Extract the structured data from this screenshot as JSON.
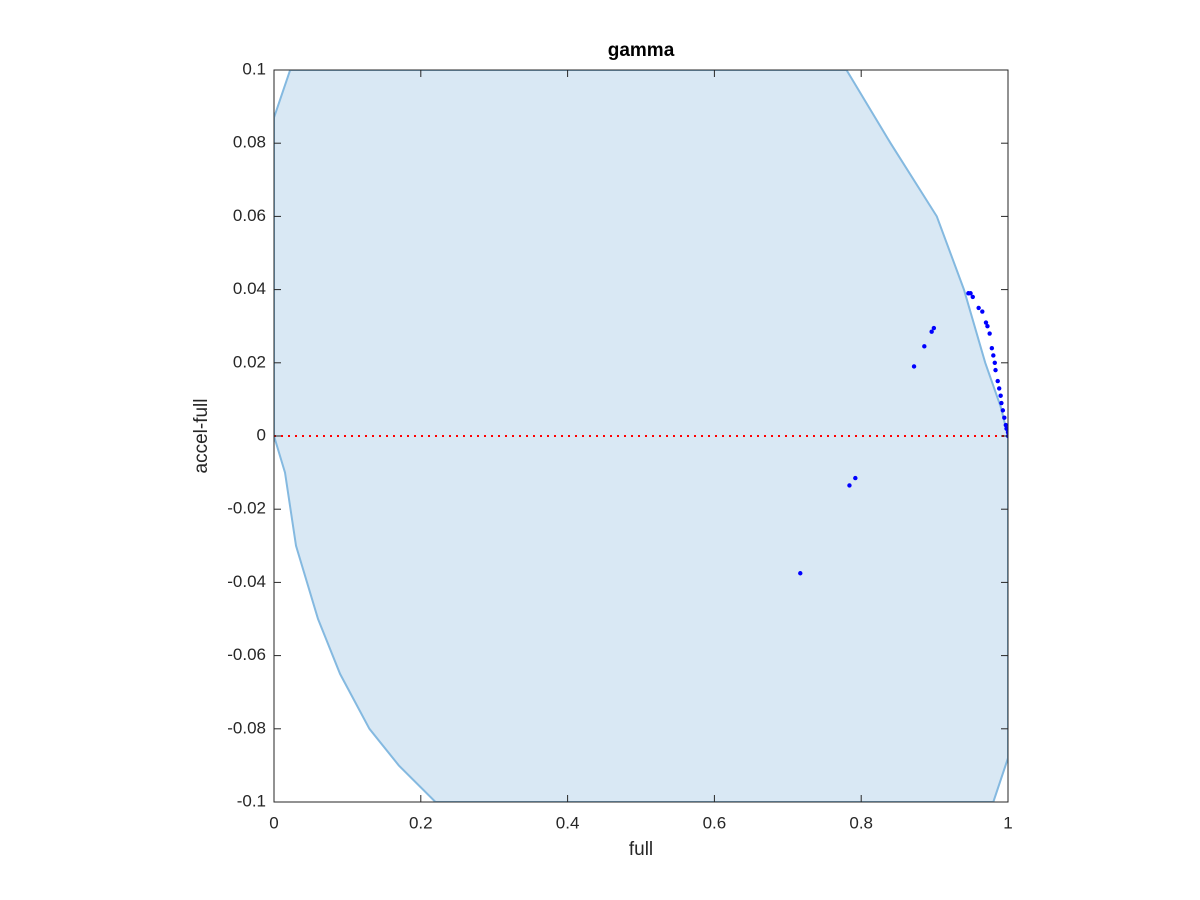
{
  "chart_data": {
    "type": "scatter",
    "title": "gamma",
    "x_label": "full",
    "y_label": "accel-full",
    "xlim": [
      0,
      1
    ],
    "ylim": [
      -0.1,
      0.1
    ],
    "xticks": [
      0,
      0.2,
      0.4,
      0.6,
      0.8,
      1
    ],
    "yticks": [
      -0.1,
      -0.08,
      -0.06,
      -0.04,
      -0.02,
      0,
      0.02,
      0.04,
      0.06,
      0.08,
      0.1
    ],
    "grid": false,
    "region": {
      "color": "#d9e8f4",
      "edge_color": "#84b9e0",
      "x": [
        0,
        0.022,
        0.78,
        0.84,
        0.903,
        0.94,
        0.969,
        0.99,
        1,
        1,
        0.98,
        0.22,
        0.17,
        0.13,
        0.09,
        0.06,
        0.03,
        0.015,
        0
      ],
      "y": [
        0.087,
        0.1,
        0.1,
        0.08,
        0.06,
        0.04,
        0.02,
        0.008,
        0,
        -0.088,
        -0.1,
        -0.1,
        -0.09,
        -0.08,
        -0.065,
        -0.05,
        -0.03,
        -0.01,
        0
      ]
    },
    "reference_line": {
      "y": 0,
      "color": "#ff0000"
    },
    "series": [
      {
        "color": "#0000ff",
        "x": [
          0.717,
          0.784,
          0.792,
          0.872,
          0.886,
          0.896,
          0.899,
          0.946,
          0.949,
          0.952,
          0.96,
          0.965,
          0.97,
          0.972,
          0.975,
          0.978,
          0.98,
          0.982,
          0.983,
          0.986,
          0.988,
          0.99,
          0.991,
          0.993,
          0.995,
          0.997,
          0.998,
          1.0,
          1.0
        ],
        "values": [
          -0.0375,
          -0.0135,
          -0.0115,
          0.019,
          0.0245,
          0.0285,
          0.0295,
          0.039,
          0.039,
          0.038,
          0.035,
          0.034,
          0.031,
          0.03,
          0.028,
          0.024,
          0.022,
          0.02,
          0.018,
          0.015,
          0.013,
          0.011,
          0.009,
          0.007,
          0.005,
          0.003,
          0.002,
          0.001,
          0.0
        ]
      }
    ]
  }
}
